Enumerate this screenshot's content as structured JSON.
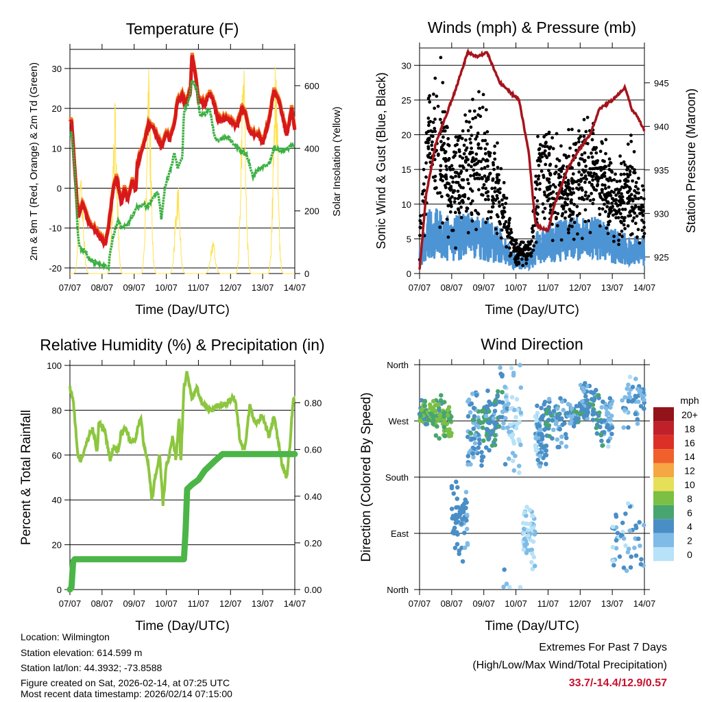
{
  "colors": {
    "temp2m": "#d7191c",
    "temp9m": "#f47c20",
    "dew": "#3cb043",
    "solar": "#ffe14d",
    "gust": "#000000",
    "wind": "#4d94d4",
    "pressure": "#a5141c",
    "rh": "#8cc63f",
    "precip": "#4cb548",
    "extreme": "#c8102e"
  },
  "chart_data": [
    {
      "type": "line",
      "title": "Temperature (F)",
      "xlabel": "Time (Day/UTC)",
      "ylabel": "2m & 9m T (Red, Orange) & 2m Td (Green)",
      "y2label": "Solar Insolation (Yellow)",
      "xticks": [
        "07/07",
        "08/07",
        "09/07",
        "10/07",
        "11/07",
        "12/07",
        "13/07",
        "14/07"
      ],
      "xlim": [
        0,
        7
      ],
      "ylim": [
        -21.4,
        34.8
      ],
      "yticks": [
        -20,
        -10,
        0,
        10,
        20,
        30
      ],
      "y2lim": [
        0,
        716
      ],
      "y2ticks": [
        0,
        200,
        400,
        600
      ],
      "series": [
        {
          "name": "2m T",
          "points": [
            [
              0,
              16.5
            ],
            [
              0.05,
              17
            ],
            [
              0.15,
              5
            ],
            [
              0.25,
              -7
            ],
            [
              0.4,
              -4
            ],
            [
              0.6,
              -9
            ],
            [
              0.75,
              -10
            ],
            [
              1.0,
              -13
            ],
            [
              1.1,
              -14
            ],
            [
              1.2,
              -10
            ],
            [
              1.35,
              0
            ],
            [
              1.45,
              3
            ],
            [
              1.6,
              -4
            ],
            [
              1.7,
              0
            ],
            [
              1.8,
              -3
            ],
            [
              1.95,
              2
            ],
            [
              2.05,
              -1
            ],
            [
              2.1,
              6
            ],
            [
              2.3,
              11
            ],
            [
              2.45,
              16
            ],
            [
              2.6,
              15
            ],
            [
              2.75,
              12
            ],
            [
              2.85,
              10.5
            ],
            [
              3.0,
              14
            ],
            [
              3.1,
              12
            ],
            [
              3.25,
              16
            ],
            [
              3.35,
              22
            ],
            [
              3.5,
              23
            ],
            [
              3.6,
              21
            ],
            [
              3.75,
              24
            ],
            [
              3.8,
              33.5
            ],
            [
              3.95,
              26
            ],
            [
              4.0,
              22
            ],
            [
              4.2,
              21
            ],
            [
              4.35,
              24
            ],
            [
              4.5,
              21
            ],
            [
              4.6,
              17
            ],
            [
              4.9,
              17.5
            ],
            [
              5.2,
              15.5
            ],
            [
              5.35,
              20
            ],
            [
              5.45,
              19
            ],
            [
              5.6,
              14
            ],
            [
              5.9,
              13
            ],
            [
              6.0,
              11
            ],
            [
              6.2,
              17
            ],
            [
              6.35,
              24.5
            ],
            [
              6.5,
              22
            ],
            [
              6.65,
              17
            ],
            [
              6.75,
              13
            ],
            [
              6.9,
              20
            ],
            [
              7,
              14.5
            ]
          ]
        },
        {
          "name": "2m Td",
          "points": [
            [
              0,
              13.5
            ],
            [
              0.05,
              14
            ],
            [
              0.15,
              5
            ],
            [
              0.25,
              -12
            ],
            [
              0.3,
              -15
            ],
            [
              0.5,
              -16
            ],
            [
              0.6,
              -18
            ],
            [
              0.9,
              -19
            ],
            [
              1.2,
              -20
            ],
            [
              1.25,
              -16
            ],
            [
              1.35,
              -12
            ],
            [
              1.5,
              -8
            ],
            [
              1.6,
              -10
            ],
            [
              1.8,
              -9
            ],
            [
              1.95,
              -7
            ],
            [
              2.05,
              -5
            ],
            [
              2.3,
              -4
            ],
            [
              2.4,
              -5
            ],
            [
              2.6,
              -2
            ],
            [
              2.75,
              -1
            ],
            [
              2.85,
              -8
            ],
            [
              2.95,
              0
            ],
            [
              3.15,
              5
            ],
            [
              3.25,
              9
            ],
            [
              3.35,
              5
            ],
            [
              3.5,
              8
            ],
            [
              3.55,
              19
            ],
            [
              3.7,
              22
            ],
            [
              3.8,
              27
            ],
            [
              3.95,
              25
            ],
            [
              4.05,
              18
            ],
            [
              4.2,
              18.5
            ],
            [
              4.35,
              20
            ],
            [
              4.5,
              13
            ],
            [
              4.6,
              12
            ],
            [
              4.9,
              13
            ],
            [
              5.1,
              11
            ],
            [
              5.3,
              9.5
            ],
            [
              5.5,
              8.5
            ],
            [
              5.7,
              3
            ],
            [
              5.9,
              5
            ],
            [
              6.2,
              6
            ],
            [
              6.35,
              10
            ],
            [
              6.6,
              9.5
            ],
            [
              6.8,
              10
            ],
            [
              7,
              11
            ]
          ]
        },
        {
          "name": "Solar peaks",
          "points": [
            [
              0.35,
              330
            ],
            [
              1.4,
              550
            ],
            [
              2.45,
              660
            ],
            [
              3.35,
              310
            ],
            [
              4.45,
              120
            ],
            [
              5.4,
              720
            ],
            [
              6.4,
              690
            ]
          ]
        }
      ]
    },
    {
      "type": "line",
      "title": "Winds (mph) & Pressure (mb)",
      "xlabel": "Time (Day/UTC)",
      "ylabel": "Sonic Wind & Gust (Blue, Black)",
      "y2label": "Station Pressure (Maroon)",
      "xticks": [
        "07/07",
        "08/07",
        "09/07",
        "10/07",
        "11/07",
        "12/07",
        "13/07",
        "14/07"
      ],
      "xlim": [
        0,
        7
      ],
      "ylim": [
        0,
        32.5
      ],
      "yticks": [
        0,
        5,
        10,
        15,
        20,
        25,
        30
      ],
      "y2lim": [
        923.1,
        949
      ],
      "y2ticks": [
        925,
        930,
        935,
        940,
        945
      ],
      "series": [
        {
          "name": "Pressure",
          "points": [
            [
              0,
              923.5
            ],
            [
              0.2,
              932
            ],
            [
              0.5,
              938
            ],
            [
              0.8,
              941
            ],
            [
              1.1,
              944
            ],
            [
              1.5,
              948.5
            ],
            [
              1.8,
              948
            ],
            [
              2.1,
              948.5
            ],
            [
              2.5,
              945
            ],
            [
              2.8,
              944
            ],
            [
              3.1,
              943
            ],
            [
              3.4,
              937
            ],
            [
              3.6,
              929
            ],
            [
              3.7,
              928.5
            ],
            [
              4.0,
              928
            ],
            [
              4.2,
              931
            ],
            [
              4.6,
              935
            ],
            [
              4.9,
              937
            ],
            [
              5.3,
              939
            ],
            [
              5.6,
              942
            ],
            [
              6.0,
              943
            ],
            [
              6.4,
              944.5
            ],
            [
              6.6,
              942
            ],
            [
              6.8,
              941
            ],
            [
              7,
              939.5
            ]
          ]
        },
        {
          "name": "Gust mean",
          "points": [
            [
              0,
              5
            ],
            [
              0.3,
              19
            ],
            [
              0.8,
              17
            ],
            [
              1.0,
              12
            ],
            [
              1.5,
              15
            ],
            [
              2.0,
              16
            ],
            [
              2.5,
              10
            ],
            [
              3.0,
              3
            ],
            [
              3.5,
              4
            ],
            [
              3.7,
              14
            ],
            [
              4.5,
              12
            ],
            [
              5.0,
              14
            ],
            [
              5.5,
              14
            ],
            [
              6.0,
              10
            ],
            [
              6.5,
              12
            ],
            [
              7,
              8
            ]
          ]
        },
        {
          "name": "Wind mean",
          "points": [
            [
              0,
              2
            ],
            [
              0.3,
              6
            ],
            [
              1.0,
              5
            ],
            [
              1.5,
              5.5
            ],
            [
              2.0,
              5
            ],
            [
              2.5,
              4
            ],
            [
              3.0,
              1.5
            ],
            [
              3.5,
              2
            ],
            [
              3.7,
              4
            ],
            [
              4.5,
              5
            ],
            [
              5.0,
              5
            ],
            [
              5.5,
              5
            ],
            [
              6.0,
              4
            ],
            [
              7,
              3
            ]
          ]
        }
      ]
    },
    {
      "type": "line",
      "title": "Relative Humidity (%) & Precipitation (in)",
      "xlabel": "Time (Day/UTC)",
      "ylabel": "Percent & Total Rainfall",
      "xticks": [
        "07/07",
        "08/07",
        "09/07",
        "10/07",
        "11/07",
        "12/07",
        "13/07",
        "14/07"
      ],
      "xlim": [
        0,
        7
      ],
      "ylim": [
        0,
        100
      ],
      "yticks": [
        0,
        20,
        40,
        60,
        80,
        100
      ],
      "y2lim": [
        0,
        0.96
      ],
      "y2ticks": [
        "0.00",
        "0.20",
        "0.40",
        "0.60",
        "0.80"
      ],
      "series": [
        {
          "name": "RH",
          "points": [
            [
              0,
              90
            ],
            [
              0.1,
              85
            ],
            [
              0.25,
              60
            ],
            [
              0.35,
              57
            ],
            [
              0.5,
              65
            ],
            [
              0.7,
              72
            ],
            [
              0.85,
              62
            ],
            [
              0.9,
              75
            ],
            [
              1.1,
              70
            ],
            [
              1.25,
              58
            ],
            [
              1.35,
              63
            ],
            [
              1.5,
              62
            ],
            [
              1.6,
              70
            ],
            [
              1.75,
              72
            ],
            [
              1.9,
              65
            ],
            [
              2.05,
              68
            ],
            [
              2.2,
              77
            ],
            [
              2.3,
              65
            ],
            [
              2.45,
              55
            ],
            [
              2.55,
              40
            ],
            [
              2.65,
              50
            ],
            [
              2.8,
              60
            ],
            [
              2.9,
              38
            ],
            [
              3.0,
              55
            ],
            [
              3.1,
              60
            ],
            [
              3.2,
              68
            ],
            [
              3.3,
              58
            ],
            [
              3.4,
              78
            ],
            [
              3.45,
              55
            ],
            [
              3.55,
              90
            ],
            [
              3.65,
              97
            ],
            [
              3.8,
              85
            ],
            [
              3.95,
              90
            ],
            [
              4.1,
              84
            ],
            [
              4.3,
              80
            ],
            [
              4.6,
              82
            ],
            [
              4.9,
              83
            ],
            [
              5.1,
              86
            ],
            [
              5.2,
              80
            ],
            [
              5.3,
              65
            ],
            [
              5.45,
              63
            ],
            [
              5.6,
              82
            ],
            [
              5.8,
              73
            ],
            [
              6.0,
              78
            ],
            [
              6.2,
              68
            ],
            [
              6.35,
              77
            ],
            [
              6.5,
              65
            ],
            [
              6.6,
              56
            ],
            [
              6.75,
              50
            ],
            [
              6.85,
              65
            ],
            [
              6.95,
              85
            ],
            [
              7,
              85
            ]
          ]
        },
        {
          "name": "Precipitation",
          "points": [
            [
              0,
              0
            ],
            [
              0.05,
              0.01
            ],
            [
              0.1,
              0.12
            ],
            [
              0.15,
              0.13
            ],
            [
              3.55,
              0.13
            ],
            [
              3.6,
              0.25
            ],
            [
              3.65,
              0.43
            ],
            [
              3.8,
              0.45
            ],
            [
              4.0,
              0.47
            ],
            [
              4.2,
              0.51
            ],
            [
              4.5,
              0.55
            ],
            [
              4.75,
              0.58
            ],
            [
              7,
              0.58
            ]
          ]
        }
      ]
    },
    {
      "type": "scatter",
      "title": "Wind Direction",
      "xlabel": "Time (Day/UTC)",
      "ylabel": "Direction (Colored By Speed)",
      "xticks": [
        "07/07",
        "08/07",
        "09/07",
        "10/07",
        "11/07",
        "12/07",
        "13/07",
        "14/07"
      ],
      "xlim": [
        0,
        7
      ],
      "ylim": [
        0,
        360
      ],
      "yticks": [
        "North",
        "East",
        "South",
        "West",
        "North"
      ],
      "legend": {
        "title": "mph",
        "labels": [
          "20+",
          "18",
          "16",
          "14",
          "12",
          "10",
          "8",
          "6",
          "4",
          "2",
          "0"
        ],
        "colors": [
          "#92141a",
          "#c0202a",
          "#dc3027",
          "#f0602a",
          "#f6a643",
          "#e6e058",
          "#7bbf45",
          "#48a56f",
          "#4a8ec6",
          "#7fbbe6",
          "#b7e2f7"
        ],
        "placement": "right"
      }
    }
  ],
  "info": {
    "location": "Location: Wilmington",
    "elevation": "Station elevation: 614.599 m",
    "latlon": "Station lat/lon: 44.3932; -73.8588",
    "created": "Figure created on Sat, 2026-02-14, at 07:25 UTC",
    "recent": "Most recent data timestamp: 2026/02/14 07:15:00"
  },
  "extremes": {
    "title": "Extremes For Past 7 Days",
    "subtitle": "(High/Low/Max Wind/Total Precipitation)",
    "values": "33.7/-14.4/12.9/0.57"
  }
}
